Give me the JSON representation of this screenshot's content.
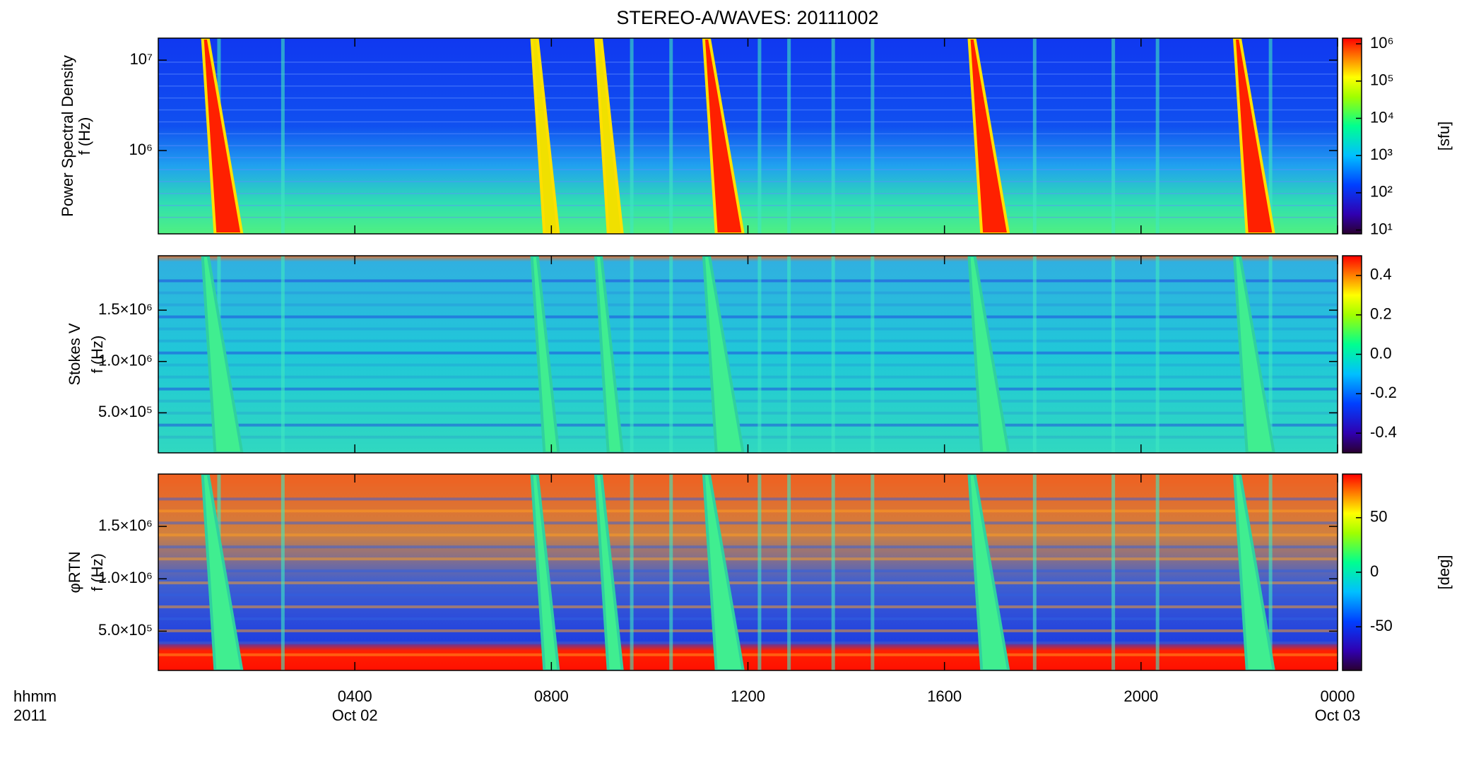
{
  "chart_data": [
    {
      "type": "spectrogram",
      "title": "STEREO-A/WAVES: 20111002",
      "ylabel": [
        "Power Spectral Density",
        "f (Hz)"
      ],
      "ylog": true,
      "ylim": [
        120000,
        17500000
      ],
      "yticks": [
        {
          "value": 1000000,
          "label": "10⁶"
        },
        {
          "value": 10000000,
          "label": "10⁷"
        }
      ],
      "zlog": true,
      "zlim": [
        7.9,
        1420000
      ],
      "zticks": [
        {
          "value": 10,
          "label": "10¹"
        },
        {
          "value": 100,
          "label": "10²"
        },
        {
          "value": 1000,
          "label": "10³"
        },
        {
          "value": 10000,
          "label": "10⁴"
        },
        {
          "value": 100000,
          "label": "10⁵"
        },
        {
          "value": 1000000,
          "label": "10⁶"
        }
      ],
      "zlabel": "[sfu]",
      "xlim": [
        0,
        24
      ]
    },
    {
      "type": "spectrogram",
      "ylabel": [
        "Stokes V",
        "f (Hz)"
      ],
      "ylog": false,
      "ylim": [
        110000,
        2030000
      ],
      "yticks": [
        {
          "value": 500000,
          "label": "5.0×10⁵"
        },
        {
          "value": 1000000,
          "label": "1.0×10⁶"
        },
        {
          "value": 1500000,
          "label": "1.5×10⁶"
        }
      ],
      "zlog": false,
      "zlim": [
        -0.5,
        0.5
      ],
      "zticks": [
        -0.4,
        -0.2,
        {
          "value": 0,
          "label": "0.0"
        },
        0.2,
        0.4
      ],
      "xlim": [
        0,
        24
      ]
    },
    {
      "type": "spectrogram",
      "ylabel": [
        "φRTN",
        "f (Hz)"
      ],
      "ylog": false,
      "ylim": [
        125000,
        2000000
      ],
      "yticks": [
        {
          "value": 500000,
          "label": "5.0×10⁵"
        },
        {
          "value": 1000000,
          "label": "1.0×10⁶"
        },
        {
          "value": 1500000,
          "label": "1.5×10⁶"
        }
      ],
      "zlog": false,
      "zlim": [
        -90,
        90
      ],
      "zticks": [
        -50,
        0,
        50
      ],
      "zlabel": "[deg]",
      "xlim": [
        0,
        24
      ],
      "xticks": [
        {
          "value": 4,
          "label": "0400"
        },
        {
          "value": 8,
          "label": "0800"
        },
        {
          "value": 12,
          "label": "1200"
        },
        {
          "value": 16,
          "label": "1600"
        },
        {
          "value": 20,
          "label": "2000"
        },
        {
          "value": 24,
          "label": "0000"
        }
      ],
      "xtick_dates": [
        {
          "value": 4,
          "label": "Oct 02"
        },
        {
          "value": 24,
          "label": "Oct 03"
        }
      ],
      "xlabel": [
        "hhmm",
        "2011"
      ]
    }
  ]
}
